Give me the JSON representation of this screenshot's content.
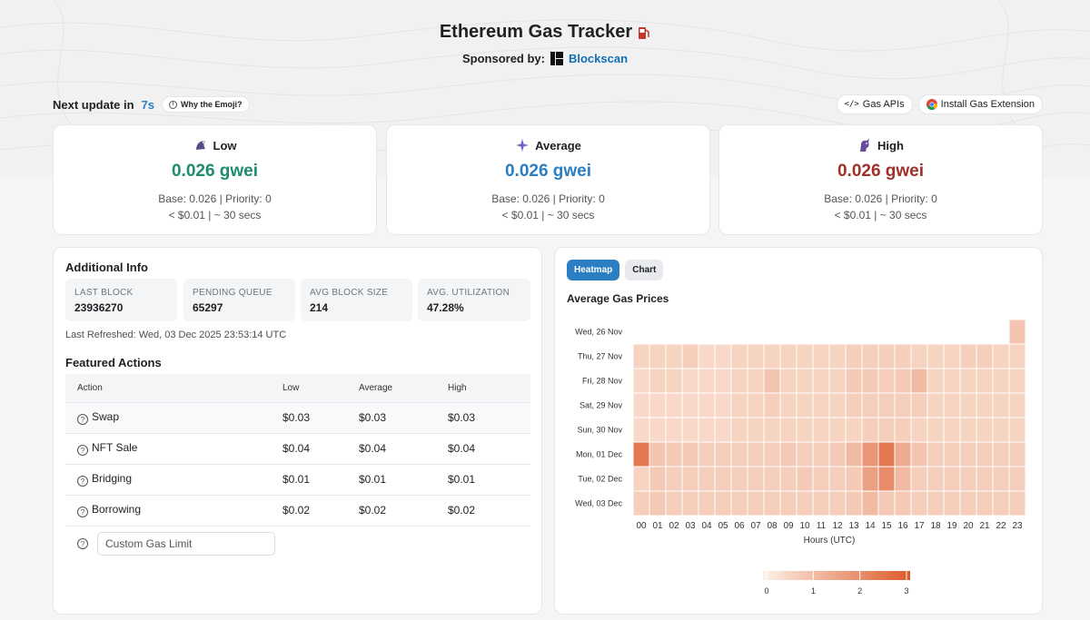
{
  "header": {
    "title": "Ethereum Gas Tracker",
    "sponsor_label": "Sponsored by:",
    "sponsor_name": "Blockscan"
  },
  "update": {
    "prefix": "Next update in",
    "seconds": "7s",
    "emoji_pill": "Why the Emoji?"
  },
  "top_links": {
    "gas_apis": "Gas APIs",
    "extension": "Install Gas Extension"
  },
  "prices": {
    "low": {
      "label": "Low",
      "gwei": "0.026 gwei",
      "base": "Base: 0.026 | Priority: 0",
      "cost": "< $0.01 | ~ 30 secs",
      "color": "#1f8c6e"
    },
    "average": {
      "label": "Average",
      "gwei": "0.026 gwei",
      "base": "Base: 0.026 | Priority: 0",
      "cost": "< $0.01 | ~ 30 secs",
      "color": "#2a7ec1"
    },
    "high": {
      "label": "High",
      "gwei": "0.026 gwei",
      "base": "Base: 0.026 | Priority: 0",
      "cost": "< $0.01 | ~ 30 secs",
      "color": "#a0302a"
    }
  },
  "info": {
    "title": "Additional Info",
    "stats": [
      {
        "key": "LAST BLOCK",
        "value": "23936270"
      },
      {
        "key": "PENDING QUEUE",
        "value": "65297"
      },
      {
        "key": "AVG BLOCK SIZE",
        "value": "214"
      },
      {
        "key": "AVG. UTILIZATION",
        "value": "47.28%"
      }
    ],
    "refreshed": "Last Refreshed: Wed, 03 Dec 2025 23:53:14 UTC",
    "featured_title": "Featured Actions",
    "columns": [
      "Action",
      "Low",
      "Average",
      "High"
    ],
    "rows": [
      {
        "action": "Swap",
        "low": "$0.03",
        "average": "$0.03",
        "high": "$0.03"
      },
      {
        "action": "NFT Sale",
        "low": "$0.04",
        "average": "$0.04",
        "high": "$0.04"
      },
      {
        "action": "Bridging",
        "low": "$0.01",
        "average": "$0.01",
        "high": "$0.01"
      },
      {
        "action": "Borrowing",
        "low": "$0.02",
        "average": "$0.02",
        "high": "$0.02"
      }
    ],
    "custom_placeholder": "Custom Gas Limit"
  },
  "chart_panel": {
    "tabs": [
      "Heatmap",
      "Chart"
    ],
    "title": "Average Gas Prices"
  },
  "chart_data": {
    "type": "heatmap",
    "title": "Average Gas Prices",
    "xlabel": "Hours (UTC)",
    "ylabel": "",
    "x": [
      "00",
      "01",
      "02",
      "03",
      "04",
      "05",
      "06",
      "07",
      "08",
      "09",
      "10",
      "11",
      "12",
      "13",
      "14",
      "15",
      "16",
      "17",
      "18",
      "19",
      "20",
      "21",
      "22",
      "23"
    ],
    "y": [
      "Wed, 26 Nov",
      "Thu, 27 Nov",
      "Fri, 28 Nov",
      "Sat, 29 Nov",
      "Sun, 30 Nov",
      "Mon, 01 Dec",
      "Tue, 02 Dec",
      "Wed, 03 Dec"
    ],
    "values": [
      [
        null,
        null,
        null,
        null,
        null,
        null,
        null,
        null,
        null,
        null,
        null,
        null,
        null,
        null,
        null,
        null,
        null,
        null,
        null,
        null,
        null,
        null,
        null,
        0.9
      ],
      [
        0.6,
        0.6,
        0.6,
        0.7,
        0.5,
        0.5,
        0.6,
        0.6,
        0.6,
        0.6,
        0.6,
        0.6,
        0.6,
        0.7,
        0.7,
        0.7,
        0.7,
        0.6,
        0.6,
        0.6,
        0.7,
        0.7,
        0.6,
        0.6
      ],
      [
        0.5,
        0.6,
        0.6,
        0.5,
        0.5,
        0.5,
        0.6,
        0.6,
        0.9,
        0.6,
        0.6,
        0.6,
        0.6,
        0.8,
        0.8,
        0.7,
        0.8,
        1.1,
        0.6,
        0.6,
        0.6,
        0.6,
        0.6,
        0.6
      ],
      [
        0.5,
        0.5,
        0.5,
        0.5,
        0.5,
        0.5,
        0.6,
        0.6,
        0.7,
        0.6,
        0.6,
        0.6,
        0.6,
        0.7,
        0.7,
        0.7,
        0.7,
        0.7,
        0.6,
        0.6,
        0.6,
        0.6,
        0.6,
        0.6
      ],
      [
        0.5,
        0.5,
        0.5,
        0.5,
        0.5,
        0.5,
        0.6,
        0.6,
        0.6,
        0.6,
        0.6,
        0.6,
        0.6,
        0.6,
        0.7,
        0.7,
        0.7,
        0.6,
        0.6,
        0.6,
        0.6,
        0.6,
        0.6,
        0.6
      ],
      [
        2.4,
        0.9,
        0.8,
        0.8,
        0.7,
        0.7,
        0.7,
        0.7,
        0.7,
        0.8,
        0.7,
        0.7,
        0.8,
        1.1,
        1.8,
        2.4,
        1.4,
        0.9,
        0.7,
        0.7,
        0.7,
        0.7,
        0.7,
        0.7
      ],
      [
        0.6,
        0.8,
        0.7,
        0.7,
        0.7,
        0.7,
        0.7,
        0.7,
        0.7,
        0.7,
        0.8,
        0.7,
        0.7,
        0.8,
        1.6,
        2.0,
        1.1,
        0.7,
        0.7,
        0.7,
        0.7,
        0.7,
        0.7,
        0.7
      ],
      [
        0.7,
        0.8,
        0.7,
        0.7,
        0.7,
        0.7,
        0.7,
        0.7,
        0.7,
        0.7,
        0.7,
        0.7,
        0.7,
        0.8,
        1.1,
        0.8,
        0.8,
        0.7,
        0.7,
        0.7,
        0.7,
        0.7,
        0.7,
        0.7
      ]
    ],
    "scale": {
      "min": 0,
      "max": 3,
      "ticks": [
        "0",
        "1",
        "2",
        "3"
      ],
      "low_color": "#fdf1e8",
      "high_color": "#dd5a2a"
    },
    "legend_position": "bottom-center"
  }
}
